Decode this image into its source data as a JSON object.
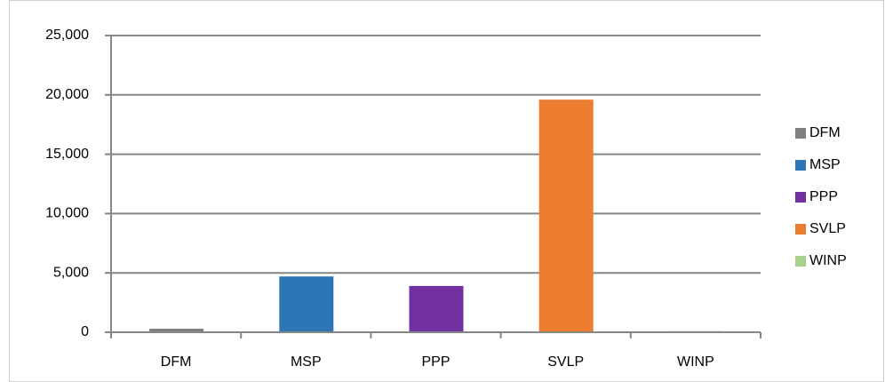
{
  "chart_data": {
    "type": "bar",
    "categories": [
      "DFM",
      "MSP",
      "PPP",
      "SVLP",
      "WINP"
    ],
    "values": [
      300,
      4700,
      3900,
      19600,
      100
    ],
    "colors": [
      "#7f7f7f",
      "#2e75b6",
      "#7030a0",
      "#ed7d31",
      "#a9d18e"
    ],
    "ylim": [
      0,
      25000
    ],
    "yticks": [
      0,
      {
        "value": 5000,
        "label": "5,000"
      },
      {
        "value": 10000,
        "label": "10,000"
      },
      {
        "value": 15000,
        "label": "15,000"
      },
      {
        "value": 20000,
        "label": "20,000"
      },
      {
        "value": 25000,
        "label": "25,000"
      }
    ],
    "grid": true,
    "legend": "right"
  }
}
